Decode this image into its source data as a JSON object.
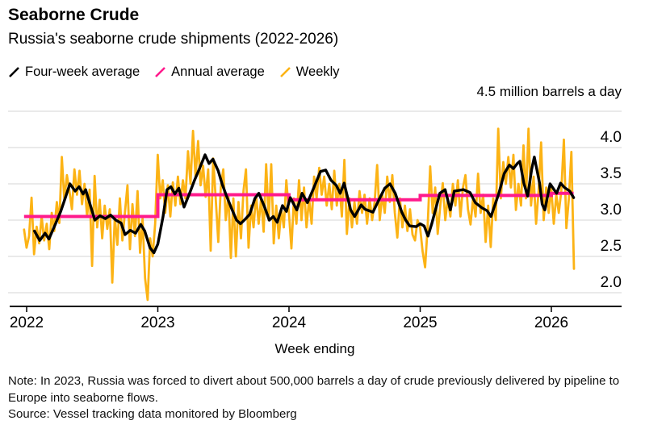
{
  "header": {
    "title": "Seaborne Crude",
    "subtitle": "Russia's seaborne crude shipments (2022-2026)"
  },
  "legend": {
    "items": [
      {
        "label": "Four-week average",
        "color": "#000000"
      },
      {
        "label": "Annual average",
        "color": "#ff1a8c"
      },
      {
        "label": "Weekly",
        "color": "#fcb315"
      }
    ]
  },
  "footer": {
    "note": "Note: In 2023, Russia was forced to divert about 500,000 barrels a day of crude previously delivered by pipeline to Europe into seaborne flows.",
    "source": "Source: Vessel tracking data monitored by Bloomberg"
  },
  "chart_data": {
    "type": "line",
    "title": "Seaborne Crude",
    "subtitle": "Russia's seaborne crude shipments (2022-2026)",
    "xlabel": "Week ending",
    "unit_top_label": "4.5 million barrels a day",
    "unit": "million barrels a day",
    "legend_position": "top-left",
    "grid": true,
    "x_axis": {
      "ticks": [
        2022,
        2023,
        2024,
        2025,
        2026
      ],
      "range": [
        2021.85,
        2026.54
      ]
    },
    "y_axis": {
      "gridlines": [
        4.5,
        4.0,
        3.5,
        3.0,
        2.5,
        2.0
      ],
      "tick_labels": [
        "4.0",
        "3.5",
        "3.0",
        "2.5",
        "2.0"
      ],
      "tick_values": [
        4.0,
        3.5,
        3.0,
        2.5,
        2.0
      ],
      "ylim": [
        1.8,
        4.6
      ]
    },
    "series": [
      {
        "name": "Weekly",
        "color": "#fcb315",
        "type": "weekly",
        "x_start": 2021.98,
        "x_step": 0.01923,
        "values": [
          2.87,
          2.62,
          2.78,
          3.31,
          2.53,
          2.91,
          2.68,
          3.05,
          2.72,
          2.95,
          2.6,
          3.1,
          2.85,
          3.25,
          2.96,
          3.87,
          3.28,
          3.62,
          3.4,
          3.15,
          3.7,
          3.35,
          3.68,
          3.22,
          3.5,
          3.05,
          3.42,
          2.37,
          3.61,
          2.9,
          3.28,
          2.75,
          3.2,
          2.88,
          3.15,
          2.14,
          3.05,
          2.66,
          3.3,
          2.72,
          3.1,
          3.48,
          2.6,
          3.22,
          2.78,
          3.4,
          2.55,
          3.02,
          2.2,
          1.9,
          2.75,
          2.5,
          2.95,
          3.9,
          3.3,
          3.55,
          3.1,
          3.48,
          3.05,
          3.52,
          3.2,
          3.6,
          3.22,
          3.55,
          3.3,
          3.95,
          3.5,
          4.23,
          3.6,
          4.09,
          3.48,
          3.75,
          3.32,
          3.7,
          2.58,
          3.85,
          3.3,
          2.7,
          3.45,
          3.7,
          3.0,
          3.35,
          2.48,
          3.3,
          2.5,
          3.25,
          2.75,
          3.4,
          3.7,
          2.62,
          3.2,
          2.9,
          3.35,
          2.95,
          3.3,
          2.84,
          3.77,
          3.0,
          3.77,
          2.68,
          3.2,
          2.75,
          3.15,
          2.9,
          3.55,
          3.1,
          2.61,
          3.3,
          2.95,
          3.55,
          3.0,
          3.45,
          2.9,
          3.3,
          2.95,
          3.6,
          3.3,
          3.72,
          3.35,
          3.6,
          3.2,
          3.5,
          3.15,
          3.68,
          3.2,
          3.5,
          3.05,
          3.83,
          2.81,
          3.3,
          2.9,
          3.25,
          2.95,
          3.4,
          3.1,
          3.35,
          2.95,
          3.3,
          3.0,
          3.25,
          3.76,
          3.0,
          3.35,
          3.1,
          3.6,
          3.25,
          3.62,
          3.1,
          2.76,
          3.3,
          2.9,
          3.2,
          2.85,
          3.15,
          2.8,
          2.72,
          3.0,
          2.9,
          2.57,
          2.35,
          2.9,
          3.74,
          3.1,
          3.45,
          2.81,
          3.2,
          3.51,
          3.0,
          3.3,
          3.05,
          3.5,
          3.2,
          3.55,
          3.05,
          3.45,
          3.62,
          3.15,
          2.94,
          3.3,
          3.05,
          3.64,
          3.1,
          3.35,
          2.7,
          3.2,
          2.63,
          3.3,
          3.0,
          4.26,
          3.3,
          3.8,
          3.5,
          3.87,
          3.45,
          3.9,
          3.14,
          3.5,
          3.2,
          4.03,
          3.3,
          4.26,
          3.2,
          3.6,
          2.95,
          3.4,
          4.07,
          3.0,
          3.45,
          3.1,
          3.45,
          2.95,
          3.35,
          3.1,
          3.4,
          4.11,
          2.89,
          3.3,
          3.94,
          2.33
        ]
      },
      {
        "name": "Annual average",
        "color": "#ff1a8c",
        "type": "step",
        "segments": [
          {
            "year": "2022",
            "x0": 2021.98,
            "x1": 2023.0,
            "value": 3.05
          },
          {
            "year": "2023",
            "x0": 2023.0,
            "x1": 2024.0,
            "value": 3.35
          },
          {
            "year": "2024",
            "x0": 2024.0,
            "x1": 2025.0,
            "value": 3.28
          },
          {
            "year": "2025",
            "x0": 2025.0,
            "x1": 2026.0,
            "value": 3.34
          },
          {
            "year": "2026",
            "x0": 2026.0,
            "x1": 2026.17,
            "value": 3.37
          }
        ]
      },
      {
        "name": "Four-week average",
        "color": "#000000",
        "type": "keypoints",
        "points": [
          [
            2022.06,
            2.85
          ],
          [
            2022.1,
            2.72
          ],
          [
            2022.14,
            2.82
          ],
          [
            2022.17,
            2.74
          ],
          [
            2022.22,
            2.95
          ],
          [
            2022.26,
            3.12
          ],
          [
            2022.29,
            3.28
          ],
          [
            2022.33,
            3.5
          ],
          [
            2022.37,
            3.4
          ],
          [
            2022.4,
            3.46
          ],
          [
            2022.43,
            3.36
          ],
          [
            2022.45,
            3.42
          ],
          [
            2022.49,
            3.18
          ],
          [
            2022.52,
            3.0
          ],
          [
            2022.56,
            3.06
          ],
          [
            2022.6,
            3.02
          ],
          [
            2022.64,
            3.07
          ],
          [
            2022.68,
            3.0
          ],
          [
            2022.72,
            2.96
          ],
          [
            2022.75,
            2.8
          ],
          [
            2022.79,
            2.86
          ],
          [
            2022.83,
            2.82
          ],
          [
            2022.87,
            2.94
          ],
          [
            2022.9,
            2.85
          ],
          [
            2022.94,
            2.62
          ],
          [
            2022.97,
            2.55
          ],
          [
            2023.0,
            2.67
          ],
          [
            2023.04,
            3.05
          ],
          [
            2023.07,
            3.42
          ],
          [
            2023.1,
            3.46
          ],
          [
            2023.13,
            3.36
          ],
          [
            2023.16,
            3.44
          ],
          [
            2023.2,
            3.18
          ],
          [
            2023.24,
            3.36
          ],
          [
            2023.28,
            3.55
          ],
          [
            2023.32,
            3.72
          ],
          [
            2023.36,
            3.9
          ],
          [
            2023.39,
            3.78
          ],
          [
            2023.42,
            3.84
          ],
          [
            2023.46,
            3.68
          ],
          [
            2023.49,
            3.5
          ],
          [
            2023.52,
            3.35
          ],
          [
            2023.56,
            3.17
          ],
          [
            2023.6,
            3.0
          ],
          [
            2023.63,
            2.95
          ],
          [
            2023.67,
            3.02
          ],
          [
            2023.7,
            3.08
          ],
          [
            2023.74,
            3.3
          ],
          [
            2023.77,
            3.37
          ],
          [
            2023.81,
            3.2
          ],
          [
            2023.85,
            3.0
          ],
          [
            2023.88,
            3.05
          ],
          [
            2023.91,
            2.97
          ],
          [
            2023.95,
            3.2
          ],
          [
            2023.98,
            3.12
          ],
          [
            2024.01,
            3.31
          ],
          [
            2024.06,
            3.14
          ],
          [
            2024.1,
            3.37
          ],
          [
            2024.14,
            3.24
          ],
          [
            2024.19,
            3.45
          ],
          [
            2024.24,
            3.67
          ],
          [
            2024.28,
            3.69
          ],
          [
            2024.32,
            3.55
          ],
          [
            2024.36,
            3.48
          ],
          [
            2024.39,
            3.37
          ],
          [
            2024.42,
            3.51
          ],
          [
            2024.47,
            3.14
          ],
          [
            2024.5,
            3.05
          ],
          [
            2024.55,
            3.21
          ],
          [
            2024.58,
            3.15
          ],
          [
            2024.64,
            3.11
          ],
          [
            2024.68,
            3.26
          ],
          [
            2024.73,
            3.44
          ],
          [
            2024.77,
            3.5
          ],
          [
            2024.81,
            3.37
          ],
          [
            2024.86,
            3.11
          ],
          [
            2024.89,
            3.0
          ],
          [
            2024.92,
            2.92
          ],
          [
            2024.97,
            2.91
          ],
          [
            2025.0,
            2.95
          ],
          [
            2025.03,
            2.92
          ],
          [
            2025.06,
            2.78
          ],
          [
            2025.09,
            2.96
          ],
          [
            2025.15,
            3.37
          ],
          [
            2025.19,
            3.42
          ],
          [
            2025.23,
            3.14
          ],
          [
            2025.26,
            3.4
          ],
          [
            2025.33,
            3.42
          ],
          [
            2025.38,
            3.38
          ],
          [
            2025.42,
            3.24
          ],
          [
            2025.47,
            3.17
          ],
          [
            2025.51,
            3.13
          ],
          [
            2025.54,
            3.05
          ],
          [
            2025.6,
            3.37
          ],
          [
            2025.64,
            3.64
          ],
          [
            2025.68,
            3.76
          ],
          [
            2025.71,
            3.71
          ],
          [
            2025.74,
            3.78
          ],
          [
            2025.76,
            3.81
          ],
          [
            2025.79,
            3.51
          ],
          [
            2025.82,
            3.33
          ],
          [
            2025.85,
            3.7
          ],
          [
            2025.87,
            3.87
          ],
          [
            2025.91,
            3.51
          ],
          [
            2025.93,
            3.22
          ],
          [
            2025.95,
            3.14
          ],
          [
            2025.99,
            3.5
          ],
          [
            2026.04,
            3.37
          ],
          [
            2026.07,
            3.51
          ],
          [
            2026.1,
            3.45
          ],
          [
            2026.14,
            3.4
          ],
          [
            2026.17,
            3.31
          ]
        ]
      }
    ]
  }
}
